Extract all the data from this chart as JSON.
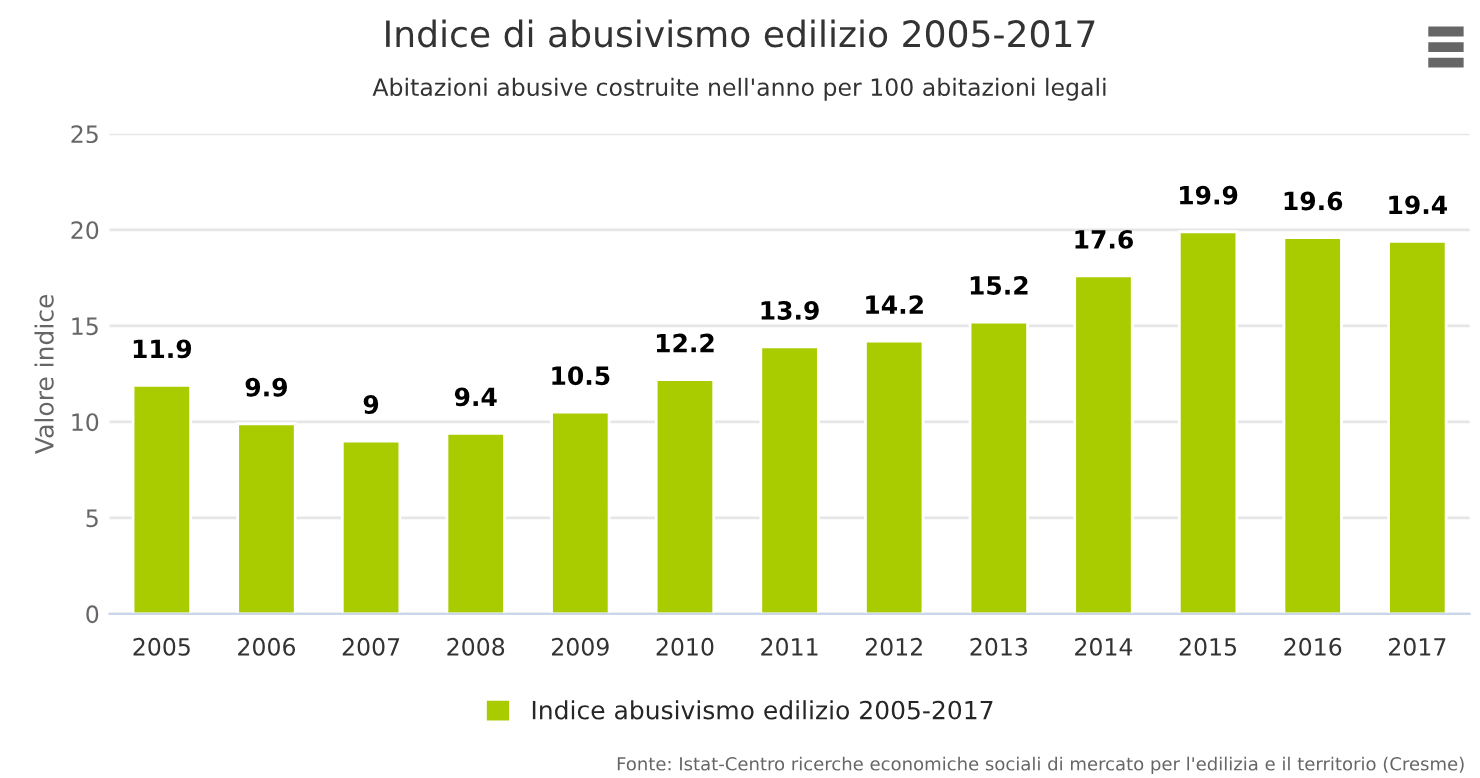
{
  "chart_data": {
    "type": "bar",
    "title": "Indice di abusivismo edilizio 2005-2017",
    "subtitle": "Abitazioni abusive costruite nell'anno per 100 abitazioni legali",
    "ylabel": "Valore indice",
    "categories": [
      "2005",
      "2006",
      "2007",
      "2008",
      "2009",
      "2010",
      "2011",
      "2012",
      "2013",
      "2014",
      "2015",
      "2016",
      "2017"
    ],
    "series": [
      {
        "name": "Indice abusivismo edilizio 2005-2017",
        "color": "#a8cc00",
        "values": [
          11.9,
          9.9,
          9,
          9.4,
          10.5,
          12.2,
          13.9,
          14.2,
          15.2,
          17.6,
          19.9,
          19.6,
          19.4
        ]
      }
    ],
    "ylim": [
      0,
      25
    ],
    "yticks": [
      0,
      5,
      10,
      15,
      20,
      25
    ],
    "grid": "y",
    "data_labels": true,
    "legend": "bottom",
    "annotations": [
      "Fonte: Istat-Centro ricerche economiche sociali di mercato per l'edilizia e il territorio (Cresme)"
    ]
  }
}
